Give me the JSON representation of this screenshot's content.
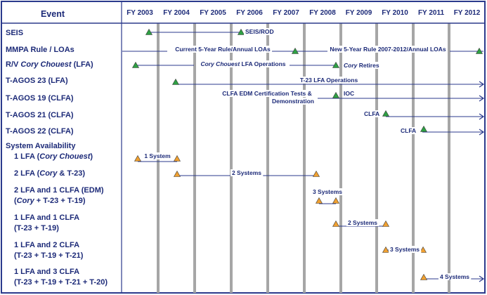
{
  "header": {
    "event_label": "Event",
    "years": [
      "FY 2003",
      "FY 2004",
      "FY 2005",
      "FY 2006",
      "FY 2007",
      "FY 2008",
      "FY 2009",
      "FY 2010",
      "FY 2011",
      "FY 2012"
    ]
  },
  "events": [
    {
      "label_parts": [
        {
          "text": "SEIS"
        }
      ]
    },
    {
      "label_parts": [
        {
          "text": "MMPA Rule / LOAs"
        }
      ]
    },
    {
      "label_parts": [
        {
          "text": "R/V "
        },
        {
          "text": "Cory Chouest",
          "italic": true
        },
        {
          "text": " (LFA)"
        }
      ]
    },
    {
      "label_parts": [
        {
          "text": "T-AGOS 23 (LFA)"
        }
      ]
    },
    {
      "label_parts": [
        {
          "text": "T-AGOS 19 (CLFA)"
        }
      ]
    },
    {
      "label_parts": [
        {
          "text": "T-AGOS 21 (CLFA)"
        }
      ]
    },
    {
      "label_parts": [
        {
          "text": "T-AGOS 22 (CLFA)"
        }
      ]
    },
    {
      "label_parts": [
        {
          "text": "System Availability"
        }
      ]
    },
    {
      "label_parts": [
        {
          "text": "1 LFA ("
        },
        {
          "text": "Cory Chouest",
          "italic": true
        },
        {
          "text": ")"
        }
      ]
    },
    {
      "label_parts": [
        {
          "text": "2 LFA ("
        },
        {
          "text": "Cory",
          "italic": true
        },
        {
          "text": " & T-23)"
        }
      ]
    },
    {
      "label_parts": [
        {
          "text": "2 LFA and 1 CLFA (EDM)"
        }
      ]
    },
    {
      "label_parts": [
        {
          "text": "("
        },
        {
          "text": "Cory",
          "italic": true
        },
        {
          "text": " + T-23 + T-19)"
        }
      ]
    },
    {
      "label_parts": [
        {
          "text": "1 LFA and 1 CLFA"
        }
      ]
    },
    {
      "label_parts": [
        {
          "text": "(T-23 + T-19)"
        }
      ]
    },
    {
      "label_parts": [
        {
          "text": "1 LFA and 2 CLFA"
        }
      ]
    },
    {
      "label_parts": [
        {
          "text": "(T-23 + T-19 + T-21)"
        }
      ]
    },
    {
      "label_parts": [
        {
          "text": "1 LFA and 3 CLFA"
        }
      ]
    },
    {
      "label_parts": [
        {
          "text": "(T-23 + T-19 + T-21 + T-20)"
        }
      ]
    }
  ],
  "annotations": [
    {
      "text_parts": [
        {
          "text": "SEIS/ROD"
        }
      ]
    },
    {
      "text_parts": [
        {
          "text": "Current 5-Year Rule/Annual LOAs"
        }
      ]
    },
    {
      "text_parts": [
        {
          "text": "New 5-Year Rule 2007-2012/Annual LOAs"
        }
      ]
    },
    {
      "text_parts": [
        {
          "text": "Cory Chouest",
          "italic": true
        },
        {
          "text": " LFA Operations"
        }
      ]
    },
    {
      "text_parts": [
        {
          "text": "Cory",
          "italic": true
        },
        {
          "text": " Retires"
        }
      ]
    },
    {
      "text_parts": [
        {
          "text": "T-23 LFA Operations"
        }
      ]
    },
    {
      "text_parts": [
        {
          "text": "CLFA EDM Certification Tests &"
        }
      ]
    },
    {
      "text_parts": [
        {
          "text": "Demonstration"
        }
      ]
    },
    {
      "text_parts": [
        {
          "text": "IOC"
        }
      ]
    },
    {
      "text_parts": [
        {
          "text": "CLFA"
        }
      ]
    },
    {
      "text_parts": [
        {
          "text": "CLFA"
        }
      ]
    },
    {
      "text_parts": [
        {
          "text": "1 System"
        }
      ]
    },
    {
      "text_parts": [
        {
          "text": "2 Systems"
        }
      ]
    },
    {
      "text_parts": [
        {
          "text": "3 Systems"
        }
      ]
    },
    {
      "text_parts": [
        {
          "text": "2 Systems"
        }
      ]
    },
    {
      "text_parts": [
        {
          "text": "3 Systems"
        }
      ]
    },
    {
      "text_parts": [
        {
          "text": "4 Systems"
        }
      ]
    }
  ],
  "colors": {
    "border": "#2b3a8c",
    "header_text": "#1c2a78",
    "event_text": "#1c2a78",
    "note_text": "#1c2a78",
    "year_divider": "#a6a6a6",
    "event_divider": "#b0b0b0",
    "timeline": "#2b3a8c",
    "milestone_green": "#2ea043",
    "milestone_orange": "#f0a030"
  },
  "icons": {
    "milestone_event": "green-triangle",
    "system_available": "orange-triangle",
    "continuing_arrow": "arrow-right"
  }
}
